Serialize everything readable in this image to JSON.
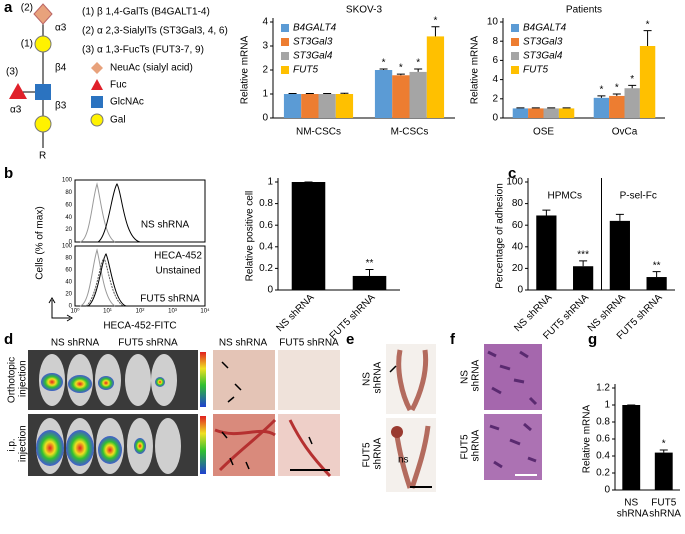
{
  "panel_labels": [
    "a",
    "b",
    "c",
    "d",
    "e",
    "f",
    "g"
  ],
  "glycan": {
    "linkages": [
      "(1)",
      "(2)",
      "(3)"
    ],
    "bonds": [
      "α3",
      "β4",
      "α3",
      "β3"
    ],
    "root": "R",
    "enzymes": [
      "(1) β 1,4-GalTs (B4GALT1-4)",
      "(2) α 2,3-SialylTs (ST3Gal3, 4, 6)",
      "(3) α 1,3-FucTs (FUT3-7, 9)"
    ],
    "legend": [
      "NeuAc (sialyl acid)",
      "Fuc",
      "GlcNAc",
      "Gal"
    ]
  },
  "flow": {
    "y_label": "Cells (% of max)",
    "x_label": "HECA-452-FITC",
    "x_tick_labels": [
      "10⁰",
      "10¹",
      "10²",
      "10³",
      "10⁴"
    ],
    "y_tick_labels": [
      "100",
      "80",
      "60",
      "40",
      "20",
      "0"
    ],
    "upper_label": "NS shRNA",
    "lower_labels": [
      "HECA-452",
      "Unstained",
      "FUT5 shRNA"
    ]
  },
  "chart_data": [
    {
      "type": "bar",
      "title": "SKOV-3",
      "y_label": "Relative mRNA",
      "categories": [
        "NM-CSCs",
        "M-CSCs"
      ],
      "series": [
        {
          "name": "B4GALT4",
          "color": "#5b9bd5",
          "values": [
            1,
            2.0
          ],
          "errors": [
            0.02,
            0.04
          ],
          "annotations": [
            null,
            "*"
          ]
        },
        {
          "name": "ST3Gal3",
          "color": "#ed7d31",
          "values": [
            1,
            1.78
          ],
          "errors": [
            0.02,
            0.05
          ],
          "annotations": [
            null,
            "*"
          ]
        },
        {
          "name": "ST3Gal4",
          "color": "#a5a5a5",
          "values": [
            1,
            1.92
          ],
          "errors": [
            0.02,
            0.12
          ],
          "annotations": [
            null,
            "*"
          ]
        },
        {
          "name": "FUT5",
          "color": "#ffc000",
          "values": [
            1,
            3.4
          ],
          "errors": [
            0.03,
            0.4
          ],
          "annotations": [
            null,
            "*"
          ]
        }
      ],
      "ylim": [
        0,
        4
      ],
      "yticks": [
        0,
        1,
        2,
        3,
        4
      ],
      "legend": "upper left"
    },
    {
      "type": "bar",
      "title": "Patients",
      "y_label": "Relative mRNA",
      "categories": [
        "OSE",
        "OvCa"
      ],
      "series": [
        {
          "name": "B4GALT4",
          "color": "#5b9bd5",
          "values": [
            1,
            2.1
          ],
          "errors": [
            0.05,
            0.2
          ],
          "annotations": [
            null,
            "*"
          ]
        },
        {
          "name": "ST3Gal3",
          "color": "#ed7d31",
          "values": [
            1,
            2.3
          ],
          "errors": [
            0.05,
            0.2
          ],
          "annotations": [
            null,
            "*"
          ]
        },
        {
          "name": "ST3Gal4",
          "color": "#a5a5a5",
          "values": [
            1,
            3.1
          ],
          "errors": [
            0.05,
            0.3
          ],
          "annotations": [
            null,
            "*"
          ]
        },
        {
          "name": "FUT5",
          "color": "#ffc000",
          "values": [
            1,
            7.5
          ],
          "errors": [
            0.05,
            1.6
          ],
          "annotations": [
            null,
            "*"
          ]
        }
      ],
      "ylim": [
        0,
        10
      ],
      "yticks": [
        0,
        2,
        4,
        6,
        8,
        10
      ],
      "legend": "upper left"
    },
    {
      "type": "bar",
      "y_label": "Relative positive cell",
      "categories": [
        "NS shRNA",
        "FUT5 shRNA"
      ],
      "values": [
        1,
        0.13
      ],
      "errors": [
        0,
        0.06
      ],
      "annotations": [
        null,
        "**"
      ],
      "color": "#000000",
      "ylim": [
        0,
        1
      ],
      "yticks": [
        0,
        0.2,
        0.4,
        0.6,
        0.8,
        1
      ]
    },
    {
      "type": "bar",
      "y_label": "Percentage of adhesion",
      "groups": [
        "HPMCs",
        "P-sel-Fc"
      ],
      "categories": [
        "NS shRNA",
        "FUT5 shRNA",
        "NS shRNA",
        "FUT5 shRNA"
      ],
      "values": [
        69,
        22,
        64,
        12
      ],
      "errors": [
        5,
        5,
        6,
        5
      ],
      "annotations": [
        null,
        "***",
        null,
        "**"
      ],
      "color": "#000000",
      "ylim": [
        0,
        100
      ],
      "yticks": [
        0,
        20,
        40,
        60,
        80,
        100
      ]
    },
    {
      "type": "bar",
      "y_label": "Relative mRNA",
      "categories": [
        "NS shRNA",
        "FUT5 shRNA"
      ],
      "values": [
        1,
        0.44
      ],
      "errors": [
        0,
        0.03
      ],
      "annotations": [
        null,
        "*"
      ],
      "color": "#000000",
      "ylim": [
        0,
        1.2
      ],
      "yticks": [
        0,
        0.2,
        0.4,
        0.6,
        0.8,
        1,
        1.2
      ]
    }
  ],
  "imaging": {
    "d": {
      "columns": [
        "NS shRNA",
        "FUT5 shRNA",
        "NS shRNA",
        "FUT5 shRNA"
      ],
      "rows": [
        "Orthotopic injection",
        "i.p. injection"
      ]
    },
    "e": {
      "rows": [
        "NS shRNA",
        "FUT5 shRNA"
      ],
      "note": "ns"
    },
    "f": {
      "rows": [
        "NS shRNA",
        "FUT5 shRNA"
      ]
    }
  }
}
